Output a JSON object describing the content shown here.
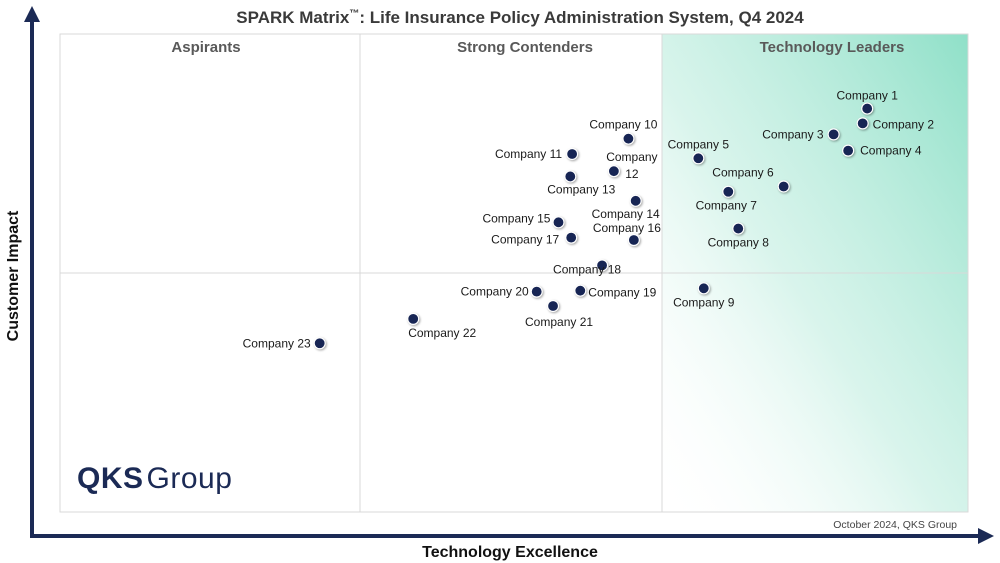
{
  "title_main": "SPARK Matrix",
  "title_tm": "™",
  "title_rest": ": Life Insurance Policy Administration System, Q4 2024",
  "logo": {
    "bold": "QKS",
    "light": "Group"
  },
  "footnote": "October 2024, QKS Group",
  "colors": {
    "axis": "#1b2a55",
    "point": "#172554",
    "leaders_gradient": "#8fe0c8",
    "grid": "#d9d9d9"
  },
  "chart_data": {
    "type": "scatter",
    "title": "SPARK Matrix™: Life Insurance Policy Administration System, Q4 2024",
    "xlabel": "Technology Excellence",
    "ylabel": "Customer Impact",
    "xlim": [
      0,
      100
    ],
    "ylim": [
      0,
      100
    ],
    "grid": true,
    "quadrants": [
      "Aspirants",
      "Strong Contenders",
      "Technology Leaders"
    ],
    "points": [
      {
        "name": "Company 1",
        "x": 88.9,
        "y": 84.4
      },
      {
        "name": "Company 2",
        "x": 88.4,
        "y": 81.3
      },
      {
        "name": "Company 3",
        "x": 85.2,
        "y": 79.0
      },
      {
        "name": "Company 4",
        "x": 86.8,
        "y": 75.6
      },
      {
        "name": "Company 5",
        "x": 70.3,
        "y": 74.0
      },
      {
        "name": "Company 6",
        "x": 79.7,
        "y": 68.1
      },
      {
        "name": "Company 7",
        "x": 73.6,
        "y": 67.0
      },
      {
        "name": "Company 8",
        "x": 74.7,
        "y": 59.3
      },
      {
        "name": "Company 9",
        "x": 70.9,
        "y": 46.8
      },
      {
        "name": "Company 10",
        "x": 62.6,
        "y": 78.1
      },
      {
        "name": "Company 11",
        "x": 56.4,
        "y": 74.9
      },
      {
        "name": "Company 12",
        "x": 61.0,
        "y": 71.3
      },
      {
        "name": "Company 13",
        "x": 56.2,
        "y": 70.2
      },
      {
        "name": "Company 14",
        "x": 63.4,
        "y": 65.1
      },
      {
        "name": "Company 15",
        "x": 54.9,
        "y": 60.6
      },
      {
        "name": "Company 16",
        "x": 63.2,
        "y": 56.9
      },
      {
        "name": "Company 17",
        "x": 56.3,
        "y": 57.4
      },
      {
        "name": "Company 18",
        "x": 59.7,
        "y": 51.6
      },
      {
        "name": "Company 19",
        "x": 57.3,
        "y": 46.3
      },
      {
        "name": "Company 20",
        "x": 52.5,
        "y": 46.1
      },
      {
        "name": "Company 21",
        "x": 54.3,
        "y": 43.1
      },
      {
        "name": "Company 22",
        "x": 38.9,
        "y": 40.4
      },
      {
        "name": "Company 23",
        "x": 28.6,
        "y": 35.3
      }
    ]
  }
}
